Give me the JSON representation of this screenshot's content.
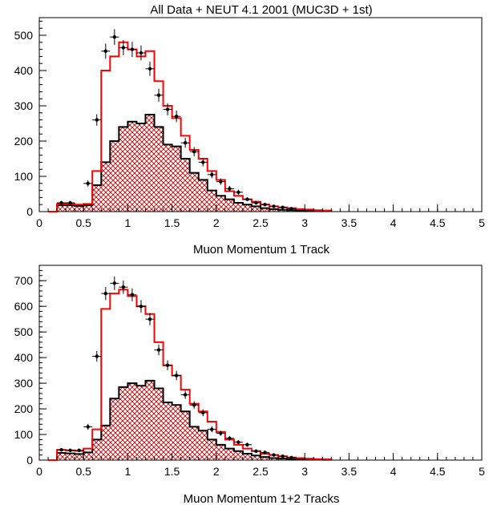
{
  "colors": {
    "mc_total": "#ff0000",
    "mc_qe": "#000000",
    "hatch": "#c00000",
    "data_points": "#000000"
  },
  "chart_data": [
    {
      "type": "histogram",
      "title": "All Data + NEUT 4.1 2001 (MUC3D + 1st)",
      "xlabel": "Muon Momentum 1 Track",
      "ylabel": "",
      "xlim": [
        0,
        5
      ],
      "ylim": [
        0,
        550
      ],
      "grid": false,
      "x_ticks": [
        "0",
        "0.5",
        "1",
        "1.5",
        "2",
        "2.5",
        "3",
        "3.5",
        "4",
        "4.5",
        "5"
      ],
      "y_ticks": [
        "0",
        "100",
        "200",
        "300",
        "400",
        "500"
      ],
      "bin_edges": [
        0.1,
        0.2,
        0.3,
        0.4,
        0.5,
        0.6,
        0.7,
        0.8,
        0.9,
        1.0,
        1.1,
        1.2,
        1.3,
        1.4,
        1.5,
        1.6,
        1.7,
        1.8,
        1.9,
        2.0,
        2.1,
        2.2,
        2.3,
        2.4,
        2.5,
        2.6,
        2.7,
        2.8,
        2.9,
        3.0,
        3.1,
        3.2,
        3.3
      ],
      "series": [
        {
          "values": [
            0,
            22,
            22,
            20,
            22,
            115,
            400,
            440,
            480,
            460,
            440,
            455,
            370,
            300,
            265,
            215,
            175,
            150,
            115,
            90,
            58,
            45,
            35,
            28,
            20,
            15,
            12,
            10,
            7,
            6,
            4,
            3
          ],
          "style": "step",
          "color": "#ff0000"
        },
        {
          "values": [
            0,
            18,
            18,
            16,
            18,
            75,
            140,
            200,
            240,
            255,
            250,
            275,
            240,
            190,
            185,
            150,
            110,
            90,
            60,
            45,
            35,
            25,
            20,
            15,
            10,
            7,
            5,
            4,
            3,
            2,
            2,
            1
          ],
          "style": "step-hatched",
          "color": "#000000"
        },
        {
          "x": [
            0.25,
            0.35,
            0.55,
            0.65,
            0.75,
            0.85,
            0.95,
            1.05,
            1.15,
            1.25,
            1.35,
            1.45,
            1.55,
            1.65,
            1.75,
            1.85,
            1.95,
            2.05,
            2.15,
            2.25,
            2.35,
            2.45,
            2.55,
            2.65,
            2.75,
            2.85
          ],
          "y": [
            25,
            25,
            80,
            260,
            455,
            495,
            465,
            460,
            450,
            405,
            330,
            290,
            270,
            195,
            170,
            140,
            105,
            85,
            65,
            55,
            35,
            25,
            20,
            15,
            12,
            8
          ],
          "style": "points-with-errors",
          "color": "#000000"
        }
      ]
    },
    {
      "type": "histogram",
      "title": "",
      "xlabel": "Muon Momentum 1+2 Tracks",
      "ylabel": "",
      "xlim": [
        0,
        5
      ],
      "ylim": [
        0,
        760
      ],
      "grid": false,
      "x_ticks": [
        "0",
        "0.5",
        "1",
        "1.5",
        "2",
        "2.5",
        "3",
        "3.5",
        "4",
        "4.5",
        "5"
      ],
      "y_ticks": [
        "0",
        "100",
        "200",
        "300",
        "400",
        "500",
        "600",
        "700"
      ],
      "bin_edges": [
        0.1,
        0.2,
        0.3,
        0.4,
        0.5,
        0.6,
        0.7,
        0.8,
        0.9,
        1.0,
        1.1,
        1.2,
        1.3,
        1.4,
        1.5,
        1.6,
        1.7,
        1.8,
        1.9,
        2.0,
        2.1,
        2.2,
        2.3,
        2.4,
        2.5,
        2.6,
        2.7,
        2.8,
        2.9,
        3.0,
        3.1,
        3.2,
        3.3
      ],
      "series": [
        {
          "values": [
            0,
            40,
            38,
            36,
            45,
            120,
            590,
            650,
            665,
            640,
            600,
            570,
            460,
            370,
            330,
            275,
            220,
            190,
            150,
            110,
            80,
            60,
            45,
            35,
            25,
            20,
            15,
            10,
            8,
            6,
            4,
            3
          ],
          "style": "step",
          "color": "#ff0000"
        },
        {
          "values": [
            0,
            28,
            26,
            24,
            30,
            80,
            135,
            240,
            285,
            300,
            290,
            310,
            280,
            225,
            215,
            190,
            130,
            115,
            80,
            60,
            45,
            35,
            25,
            18,
            12,
            8,
            6,
            4,
            3,
            2,
            2,
            1
          ],
          "style": "step-hatched",
          "color": "#000000"
        },
        {
          "x": [
            0.25,
            0.35,
            0.45,
            0.55,
            0.65,
            0.75,
            0.85,
            0.95,
            1.05,
            1.15,
            1.25,
            1.35,
            1.45,
            1.55,
            1.65,
            1.75,
            1.85,
            1.95,
            2.05,
            2.15,
            2.25,
            2.35,
            2.45,
            2.55,
            2.65,
            2.75,
            2.85
          ],
          "y": [
            40,
            38,
            38,
            130,
            405,
            650,
            690,
            675,
            645,
            600,
            550,
            430,
            370,
            330,
            255,
            215,
            185,
            120,
            105,
            85,
            70,
            60,
            35,
            30,
            20,
            15,
            10
          ],
          "style": "points-with-errors",
          "color": "#000000"
        }
      ]
    }
  ]
}
